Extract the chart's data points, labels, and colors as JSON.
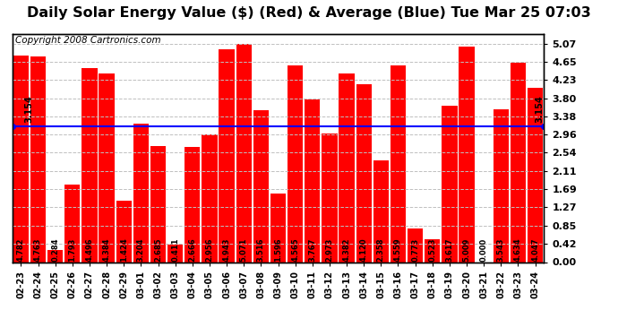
{
  "title": "Daily Solar Energy Value ($) (Red) & Average (Blue) Tue Mar 25 07:03",
  "copyright": "Copyright 2008 Cartronics.com",
  "average": 3.154,
  "categories": [
    "02-23",
    "02-24",
    "02-25",
    "02-26",
    "02-27",
    "02-28",
    "02-29",
    "03-01",
    "03-02",
    "03-03",
    "03-04",
    "03-05",
    "03-06",
    "03-07",
    "03-08",
    "03-09",
    "03-10",
    "03-11",
    "03-12",
    "03-13",
    "03-14",
    "03-15",
    "03-16",
    "03-17",
    "03-18",
    "03-19",
    "03-20",
    "03-21",
    "03-22",
    "03-23",
    "03-24"
  ],
  "values": [
    4.782,
    4.763,
    0.284,
    1.793,
    4.496,
    4.384,
    1.424,
    3.204,
    2.685,
    0.411,
    2.666,
    2.956,
    4.943,
    5.071,
    3.516,
    1.596,
    4.565,
    3.767,
    2.973,
    4.382,
    4.12,
    2.358,
    4.559,
    0.773,
    0.523,
    3.617,
    5.009,
    0.0,
    3.543,
    4.634,
    4.047
  ],
  "bar_color": "#ff0000",
  "avg_line_color": "#0000ff",
  "bg_color": "#ffffff",
  "plot_bg_color": "#ffffff",
  "grid_color": "#c0c0c0",
  "title_fontsize": 11.5,
  "copyright_fontsize": 7.5,
  "yticks": [
    0.0,
    0.42,
    0.85,
    1.27,
    1.69,
    2.11,
    2.54,
    2.96,
    3.38,
    3.8,
    4.23,
    4.65,
    5.07
  ],
  "ylim_max": 5.3,
  "value_label_fontsize": 6.0,
  "avg_label_fontsize": 7.0
}
